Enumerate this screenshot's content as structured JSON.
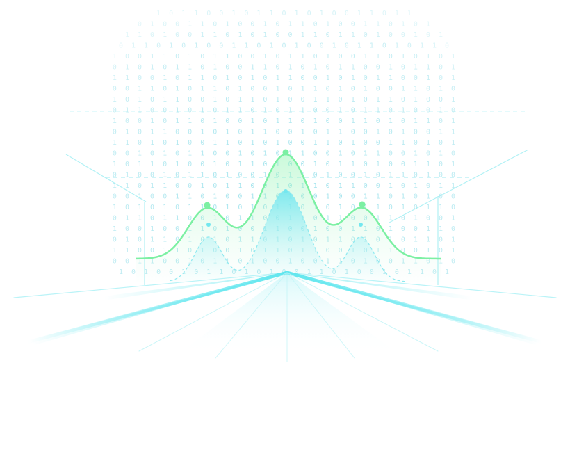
{
  "colors": {
    "background": "#ffffff",
    "cyan": "#5fe6ee",
    "cyan_light": "#a9f1f6",
    "green": "#7cf0a3",
    "green_fill": "#b8f5c6",
    "binary_text": "#7fd9e6"
  },
  "binary_rows": [
    "1 0 1 1 0 0 1 0 1 1 0 1 0 1 0 0 1 1 0 1 1",
    "0 1 0 0 1 1 0 1 0 0 1 0 1 1 0 1 0 0 1 1 0 1 0 1",
    "1 1 0 1 0 0 1 1 0 1 0 1 0 0 1 1 0 1 1 0 1 0 0 1 0 1",
    "0 1 1 0 1 0 1 0 0 1 1 0 1 0 1 0 0 1 0 1 1 0 1 0 1 1 0",
    "1 0 0 1 1 0 1 0 1 1 0 0 1 0 1 1 0 1 0 0 1 1 0 1 0 1 0 1",
    "0 1 0 1 0 1 1 0 1 0 0 1 1 0 1 0 1 0 1 1 0 0 1 0 1 1 0 1",
    "1 1 0 0 1 0 1 1 0 1 0 1 0 1 1 0 0 1 0 1 0 1 1 0 0 1 0 1",
    "0 0 1 1 0 1 0 1 1 0 1 0 0 1 0 1 1 0 1 0 1 0 0 1 1 0 1 0",
    "1 0 1 0 1 1 0 0 1 0 1 1 0 1 0 0 1 1 0 1 0 1 1 0 1 0 0 1",
    "0 1 1 0 0 1 0 1 0 1 1 0 1 0 1 1 0 0 1 0 1 1 0 1 0 0 1 0",
    "1 0 0 1 0 1 1 0 1 0 0 1 0 1 1 0 1 0 0 1 1 0 1 0 1 1 0 1",
    "0 1 0 1 1 0 0 1 0 1 0 1 1 0 0 1 0 1 1 0 0 1 0 1 0 0 1 1",
    "1 1 0 1 0 1 0 0 1 1 0 1 0 1 0 0 1 1 0 1 0 0 1 1 0 1 0 1",
    "0 0 1 0 1 0 1 1 0 0 1 0 1 0 1 1 0 0 1 0 1 1 0 0 1 0 1 0",
    "1 0 1 1 0 1 0 0 1 0 1 1 0 1 0 0 1 0 1 1 0 1 0 0 1 1 0 1",
    "0 1 0 0 1 0 1 1 0 1 0 0 1 0 1 1 0 1 0 0 1 0 1 1 0 1 0 0",
    "1 1 0 1 1 0 0 1 0 1 1 0 0 1 0 1 1 0 1 1 0 0 1 0 1 0 1 1",
    "0 0 1 0 0 1 1 0 1 0 0 1 1 0 1 0 0 1 0 0 1 1 0 1 0 1 0 0",
    "1 0 1 0 1 0 1 1 0 1 0 1 0 1 1 0 1 0 1 0 1 1 0 1 0 1 1 0",
    "0 1 1 0 1 1 0 0 1 0 1 1 0 0 1 1 0 1 1 0 0 1 1 0 1 0 0 1",
    "1 0 0 1 0 0 1 1 0 1 0 0 1 1 0 0 1 0 0 1 1 0 1 0 0 1 1 0",
    "0 1 0 1 1 0 1 0 1 0 1 1 0 1 0 1 0 1 1 0 1 0 1 0 1 1 0 1",
    "1 1 0 0 1 1 0 1 0 0 1 0 1 1 0 1 1 0 0 1 0 1 1 0 0 1 0 1",
    "0 0 1 1 0 0 1 0 1 1 0 1 0 0 1 0 0 1 1 0 1 0 0 1 1 0 1 0",
    "1 0 1 0 0 1 0 1 1 0 1 0 1 0 0 1 1 0 1 0 0 1 0 1 1 0 1"
  ],
  "peaks_green": [
    0.18,
    1.0,
    0.18
  ],
  "peaks_cyan": [
    0.55,
    1.0,
    0.55
  ]
}
